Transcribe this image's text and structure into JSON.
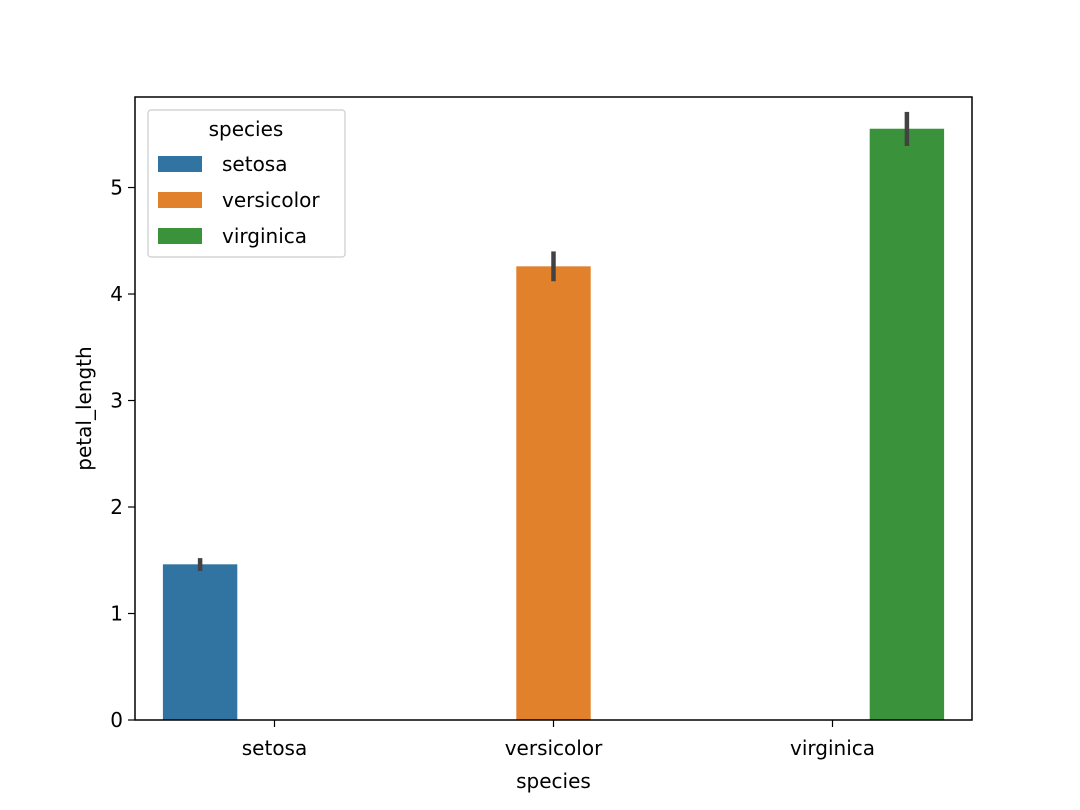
{
  "chart_data": {
    "type": "bar",
    "xlabel": "species",
    "ylabel": "petal_length",
    "categories": [
      "setosa",
      "versicolor",
      "virginica"
    ],
    "ylim": [
      0,
      5.85
    ],
    "yticks": [
      "0",
      "1",
      "2",
      "3",
      "4",
      "5"
    ],
    "grid": false,
    "legend": {
      "title": "species",
      "placement": "top-left",
      "entries": [
        "setosa",
        "versicolor",
        "virginica"
      ]
    },
    "series": [
      {
        "name": "setosa",
        "color": "#3274a1",
        "category_index": 0,
        "value": 1.462,
        "ci": [
          1.4,
          1.52
        ]
      },
      {
        "name": "versicolor",
        "color": "#e1812c",
        "category_index": 1,
        "value": 4.26,
        "ci": [
          4.12,
          4.4
        ]
      },
      {
        "name": "virginica",
        "color": "#3a923a",
        "category_index": 2,
        "value": 5.552,
        "ci": [
          5.39,
          5.71
        ]
      }
    ],
    "errorbar_color": "#424242"
  }
}
